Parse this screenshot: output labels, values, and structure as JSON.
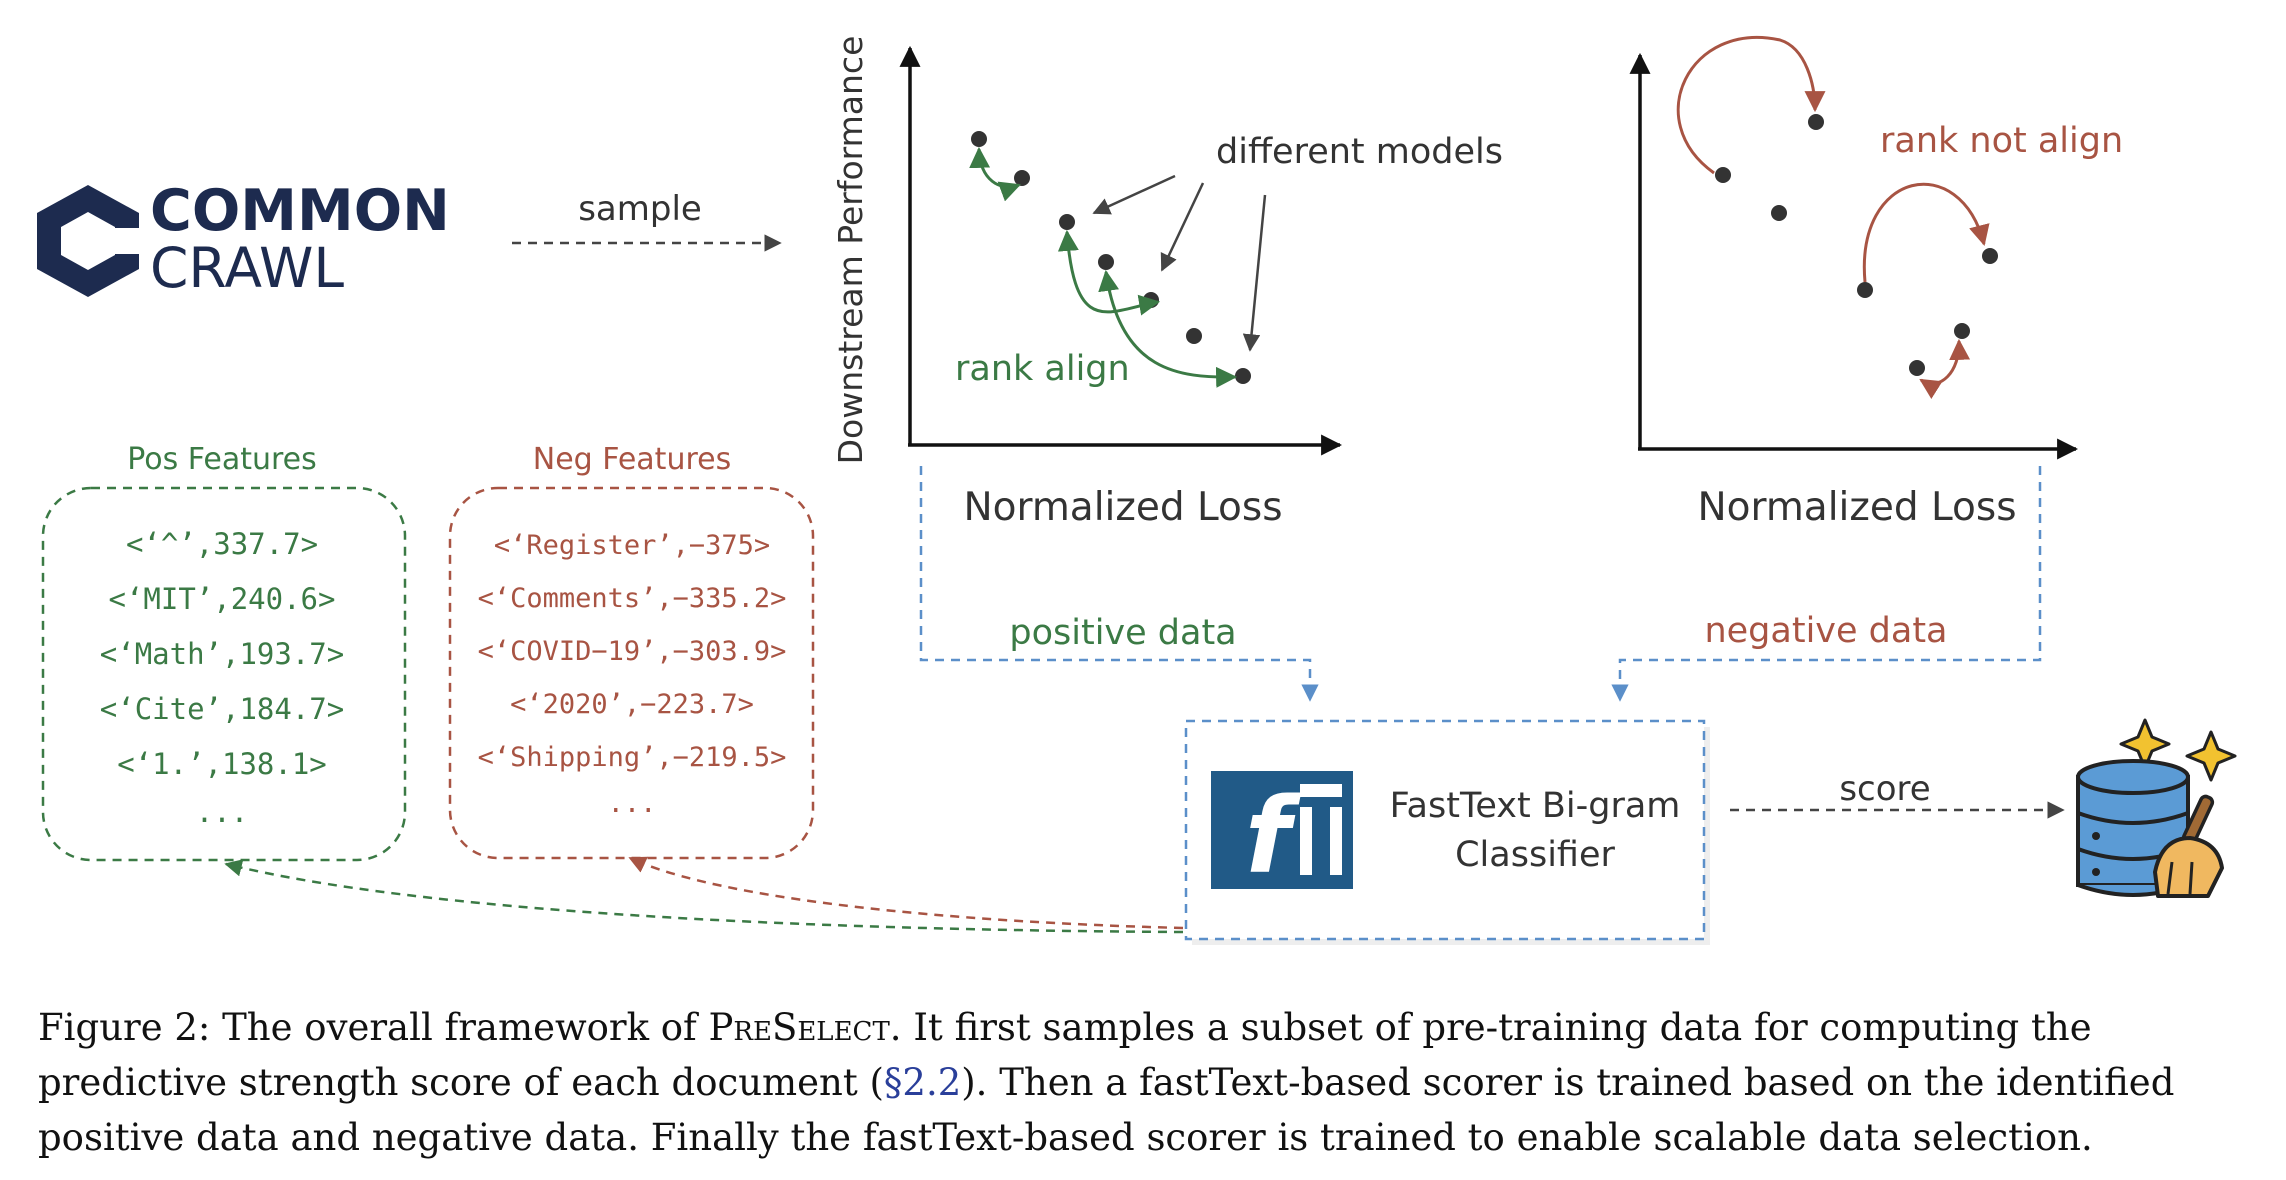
{
  "logo": {
    "line1": "COMMON",
    "line2": "CRAWL"
  },
  "arrows": {
    "sample": "sample",
    "score": "score"
  },
  "plot_left": {
    "ylabel": "Downstream Performance",
    "xlabel": "Normalized Loss",
    "annotation_models": "different models",
    "annotation_rank": "rank align"
  },
  "plot_right": {
    "xlabel": "Normalized Loss",
    "annotation_rank": "rank not align"
  },
  "labels": {
    "positive": "positive data",
    "negative": "negative data"
  },
  "pos_features": {
    "title": "Pos Features",
    "items": [
      "<‘^’,337.7>",
      "<‘MIT’,240.6>",
      "<‘Math’,193.7>",
      "<‘Cite’,184.7>",
      "<‘1.’,138.1>",
      "..."
    ]
  },
  "neg_features": {
    "title": "Neg Features",
    "items": [
      "<‘Register’,−375>",
      "<‘Comments’,−335.2>",
      "<‘COVID−19’,−303.9>",
      "<‘2020’,−223.7>",
      "<‘Shipping’,−219.5>",
      "..."
    ]
  },
  "classifier": {
    "line1": "FastText Bi-gram",
    "line2": "Classifier",
    "logo_text": "f"
  },
  "caption": {
    "prefix": "Figure 2: The overall framework of ",
    "name": "PreSelect",
    "part1": ". It first samples a subset of pre-training data for computing the predictive strength score of each document (",
    "ref": "§2.2",
    "part2": "). Then a fastText-based scorer is trained based on the identified positive data and negative data. Finally the fastText-based scorer is trained to enable scalable data selection."
  },
  "colors": {
    "green": "#3b7a45",
    "red": "#a85443",
    "blue": "#5b8fc9",
    "navy": "#1d2b4f",
    "ft_blue": "#215a87",
    "db_blue": "#5b9bd5"
  }
}
